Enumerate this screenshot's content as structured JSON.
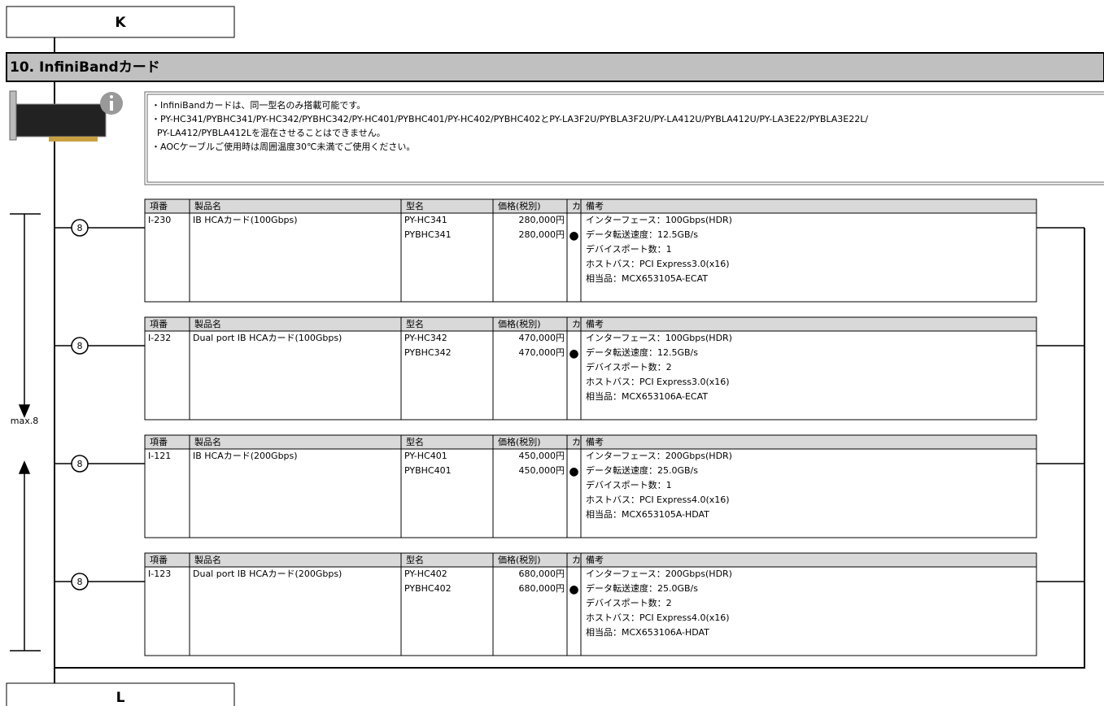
{
  "top_box": "K",
  "bottom_box": "L",
  "section_title": "10. InfiniBandカード",
  "notes": [
    "・InfiniBandカードは、同一型名のみ搭載可能です。",
    "・PY-HC341/PYBHC341/PY-HC342/PYBHC342/PY-HC401/PYBHC401/PY-HC402/PYBHC402とPY-LA3F2U/PYBLA3F2U/PY-LA412U/PYBLA412U/PY-LA3E22/PYBLA3E22L/",
    "  PY-LA412/PYBLA412Lを混在させることはできません。",
    "・AOCケーブルご使用時は周囲温度30℃未満でご使用ください。"
  ],
  "max_label": "max.8",
  "columns": [
    "項番",
    "製品名",
    "型名",
    "価格(税別)",
    "カ",
    "備考"
  ],
  "tables": [
    {
      "slot": "8",
      "item": "I-230",
      "name": "IB HCAカード(100Gbps)",
      "models": [
        "PY-HC341",
        "PYBHC341"
      ],
      "prices": [
        "280,000円",
        "280,000円"
      ],
      "mark": "●",
      "remarks": [
        "インターフェース：100Gbps(HDR)",
        "データ転送速度：12.5GB/s",
        "デバイスポート数：1",
        "ホストバス：PCI Express3.0(x16)",
        "相当品：MCX653105A-ECAT"
      ]
    },
    {
      "slot": "8",
      "item": "I-232",
      "name": "Dual port IB HCAカード(100Gbps)",
      "models": [
        "PY-HC342",
        "PYBHC342"
      ],
      "prices": [
        "470,000円",
        "470,000円"
      ],
      "mark": "●",
      "remarks": [
        "インターフェース：100Gbps(HDR)",
        "データ転送速度：12.5GB/s",
        "デバイスポート数：2",
        "ホストバス：PCI Express3.0(x16)",
        "相当品：MCX653106A-ECAT"
      ]
    },
    {
      "slot": "8",
      "item": "I-121",
      "name": "IB HCAカード(200Gbps)",
      "models": [
        "PY-HC401",
        "PYBHC401"
      ],
      "prices": [
        "450,000円",
        "450,000円"
      ],
      "mark": "●",
      "remarks": [
        "インターフェース：200Gbps(HDR)",
        "データ転送速度：25.0GB/s",
        "デバイスポート数：1",
        "ホストバス：PCI Express4.0(x16)",
        "相当品：MCX653105A-HDAT"
      ]
    },
    {
      "slot": "8",
      "item": "I-123",
      "name": "Dual port IB HCAカード(200Gbps)",
      "models": [
        "PY-HC402",
        "PYBHC402"
      ],
      "prices": [
        "680,000円",
        "680,000円"
      ],
      "mark": "●",
      "remarks": [
        "インターフェース：200Gbps(HDR)",
        "データ転送速度：25.0GB/s",
        "デバイスポート数：2",
        "ホストバス：PCI Express4.0(x16)",
        "相当品：MCX653106A-HDAT"
      ]
    }
  ]
}
